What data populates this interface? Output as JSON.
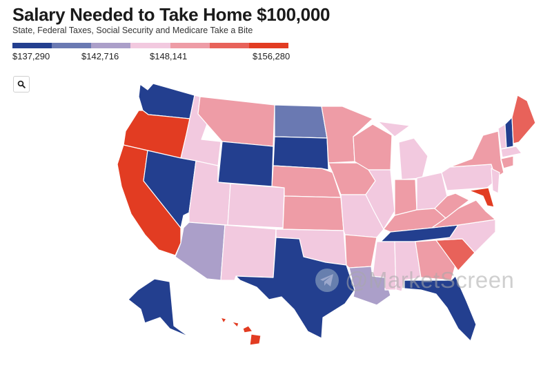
{
  "title": "Salary Needed to Take Home $100,000",
  "subtitle": "State, Federal Taxes, Social Security and Medicare Take a Bite",
  "legend": {
    "colors": [
      "#233f8f",
      "#6a79b2",
      "#ab9fc9",
      "#f2c9df",
      "#ee9ca6",
      "#e8625a",
      "#e23c22"
    ],
    "labels": [
      "$137,290",
      "$142,716",
      "$148,141",
      "$156,280"
    ]
  },
  "search_icon": "search-icon",
  "watermark": {
    "icon": "telegram-icon",
    "text": "@MarketScreen"
  },
  "map_colors": {
    "dark_blue": "#233f8f",
    "blue": "#6a79b2",
    "lavender": "#ab9fc9",
    "light_pink": "#f2c9df",
    "salmon": "#ee9ca6",
    "coral": "#e8625a",
    "red": "#e23c22"
  }
}
